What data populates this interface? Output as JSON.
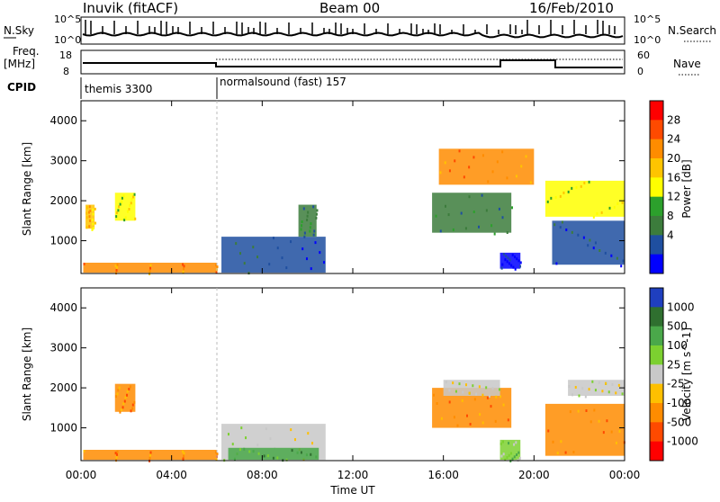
{
  "header": {
    "station": "Inuvik (fitACF)",
    "beam": "Beam 00",
    "date": "16/Feb/2010"
  },
  "noise_panel": {
    "left_label": "N.Sky",
    "right_label": "N.Search",
    "left_ticks": [
      "10^5",
      "10^0"
    ],
    "right_ticks": [
      "10^5",
      "10^0"
    ]
  },
  "freq_panel": {
    "left_label": "Freq.",
    "left_unit": "[MHz]",
    "right_label": "Nave",
    "left_ticks": [
      "18",
      "8"
    ],
    "right_ticks": [
      "60",
      "0"
    ]
  },
  "cpid_panel": {
    "label": "CPID",
    "segments": [
      {
        "name": "themis 3300",
        "start_hour": 0,
        "end_hour": 6
      },
      {
        "name": "normalsound (fast) 157",
        "start_hour": 6,
        "end_hour": 24
      }
    ]
  },
  "chart_data": [
    {
      "type": "heatmap",
      "name": "power",
      "ylabel": "Slant Range [km]",
      "y_ticks": [
        "1000",
        "2000",
        "3000",
        "4000"
      ],
      "ylim": [
        180,
        4500
      ],
      "xlim": [
        0,
        24
      ],
      "colorbar": {
        "label": "Power [dB]",
        "ticks": [
          "28",
          "24",
          "20",
          "16",
          "12",
          "8",
          "4"
        ],
        "colors": [
          "#ff0000",
          "#ff4a00",
          "#ff8c00",
          "#ffc400",
          "#ffff00",
          "#2ca02c",
          "#3c7c3c",
          "#1f4fa0",
          "#0000ff"
        ]
      },
      "regions": [
        {
          "x": [
            0.1,
            6
          ],
          "y": [
            200,
            450
          ],
          "level": 2
        },
        {
          "x": [
            0.2,
            0.6
          ],
          "y": [
            1300,
            1900
          ],
          "level": 3
        },
        {
          "x": [
            1.5,
            2.4
          ],
          "y": [
            1500,
            2200
          ],
          "level": 4
        },
        {
          "x": [
            6.2,
            10.8
          ],
          "y": [
            200,
            1100
          ],
          "level": 7
        },
        {
          "x": [
            9.6,
            10.4
          ],
          "y": [
            1100,
            1900
          ],
          "level": 6
        },
        {
          "x": [
            15.5,
            19.0
          ],
          "y": [
            1200,
            2200
          ],
          "level": 6
        },
        {
          "x": [
            18.5,
            19.4
          ],
          "y": [
            300,
            700
          ],
          "level": 8
        },
        {
          "x": [
            20.8,
            24
          ],
          "y": [
            400,
            1500
          ],
          "level": 7
        },
        {
          "x": [
            20.5,
            24
          ],
          "y": [
            1600,
            2500
          ],
          "level": 4
        },
        {
          "x": [
            15.8,
            20.0
          ],
          "y": [
            2400,
            3300
          ],
          "level": 2
        }
      ]
    },
    {
      "type": "heatmap",
      "name": "velocity",
      "ylabel": "Slant Range [km]",
      "y_ticks": [
        "1000",
        "2000",
        "3000",
        "4000"
      ],
      "ylim": [
        180,
        4500
      ],
      "xlim": [
        0,
        24
      ],
      "xlabel": "Time UT",
      "x_ticks": [
        "00:00",
        "04:00",
        "08:00",
        "12:00",
        "16:00",
        "20:00",
        "00:00"
      ],
      "colorbar": {
        "label": "Velocity [m s^-1]",
        "ticks": [
          "1000",
          "500",
          "100",
          "25",
          "-25",
          "-100",
          "-500",
          "-1000"
        ],
        "colors": [
          "#1f3fbf",
          "#2f6f2f",
          "#4aa84a",
          "#7cd030",
          "#c8c8c8",
          "#ffc000",
          "#ff8c00",
          "#ff4a00",
          "#ff0000"
        ]
      },
      "regions": [
        {
          "x": [
            0.1,
            6
          ],
          "y": [
            200,
            450
          ],
          "level": 6
        },
        {
          "x": [
            1.5,
            2.4
          ],
          "y": [
            1400,
            2100
          ],
          "level": 6
        },
        {
          "x": [
            6.2,
            10.8
          ],
          "y": [
            200,
            1100
          ],
          "level": 4
        },
        {
          "x": [
            6.5,
            10.5
          ],
          "y": [
            200,
            500
          ],
          "level": 2
        },
        {
          "x": [
            15.5,
            19.0
          ],
          "y": [
            1000,
            2000
          ],
          "level": 6
        },
        {
          "x": [
            18.5,
            19.4
          ],
          "y": [
            200,
            700
          ],
          "level": 3
        },
        {
          "x": [
            20.5,
            24
          ],
          "y": [
            300,
            1600
          ],
          "level": 6
        },
        {
          "x": [
            16.0,
            18.5
          ],
          "y": [
            1800,
            2200
          ],
          "level": 4
        },
        {
          "x": [
            21.5,
            24
          ],
          "y": [
            1800,
            2200
          ],
          "level": 4
        }
      ]
    }
  ]
}
